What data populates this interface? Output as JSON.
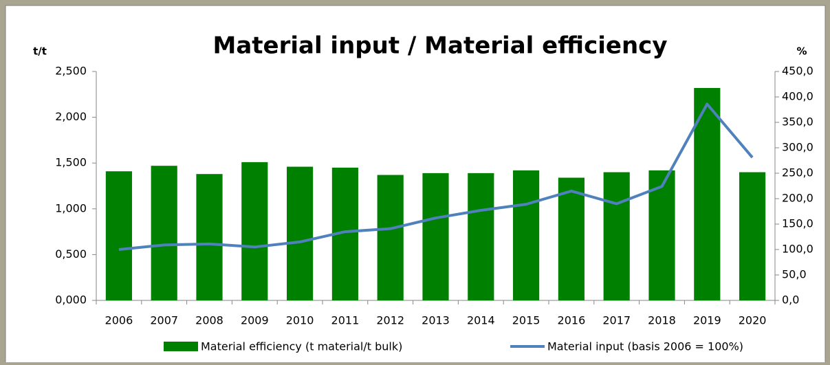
{
  "chart_data": {
    "type": "bar-line",
    "title": "Material input / Material efficiency",
    "y_label": "t/t",
    "y2_label": "%",
    "categories": [
      "2006",
      "2007",
      "2008",
      "2009",
      "2010",
      "2011",
      "2012",
      "2013",
      "2014",
      "2015",
      "2016",
      "2017",
      "2018",
      "2019",
      "2020"
    ],
    "series": [
      {
        "name": "Material efficiency (t material/t bulk)",
        "type": "bar",
        "color": "#008000",
        "values": [
          1.41,
          1.47,
          1.38,
          1.51,
          1.46,
          1.45,
          1.37,
          1.39,
          1.39,
          1.42,
          1.34,
          1.4,
          1.42,
          2.32,
          1.4
        ]
      },
      {
        "name": "Material input (basis 2006 = 100%)",
        "type": "line",
        "color": "#4f81bd",
        "axis": "y2",
        "values": [
          100,
          109,
          111,
          105,
          115,
          135,
          141,
          162,
          177,
          189,
          215,
          190,
          224,
          386,
          281
        ]
      }
    ],
    "ylim": [
      0,
      2.5
    ],
    "yticks": [
      {
        "value": 0,
        "label": "0,000"
      },
      {
        "value": 0.5,
        "label": "0,500"
      },
      {
        "value": 1,
        "label": "1,000"
      },
      {
        "value": 1.5,
        "label": "1,500"
      },
      {
        "value": 2,
        "label": "2,000"
      },
      {
        "value": 2.5,
        "label": "2,500"
      }
    ],
    "y2lim": [
      0,
      450
    ],
    "y2ticks": [
      {
        "value": 0,
        "label": "0,0"
      },
      {
        "value": 50,
        "label": "50,0"
      },
      {
        "value": 100,
        "label": "100,0"
      },
      {
        "value": 150,
        "label": "150,0"
      },
      {
        "value": 200,
        "label": "200,0"
      },
      {
        "value": 250,
        "label": "250,0"
      },
      {
        "value": 300,
        "label": "300,0"
      },
      {
        "value": 350,
        "label": "350,0"
      },
      {
        "value": 400,
        "label": "400,0"
      },
      {
        "value": 450,
        "label": "450,0"
      }
    ]
  }
}
